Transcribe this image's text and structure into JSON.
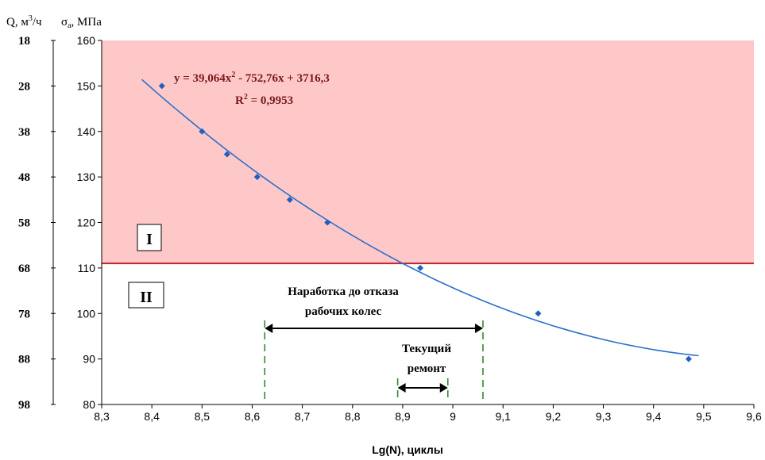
{
  "chart_data": {
    "type": "scatter",
    "xlabel": "Lg(N), циклы",
    "ylabel_sigma": "σa, МПа",
    "ylabel_q": "Q, м³/ч",
    "xlim": [
      8.3,
      9.6
    ],
    "ylim": [
      80,
      160
    ],
    "x_ticks": [
      "8,3",
      "8,4",
      "8,5",
      "8,6",
      "8,7",
      "8,8",
      "8,9",
      "9",
      "9,1",
      "9,2",
      "9,3",
      "9,4",
      "9,5",
      "9,6"
    ],
    "y_ticks": [
      "80",
      "90",
      "100",
      "110",
      "120",
      "130",
      "140",
      "150",
      "160"
    ],
    "q_ticks": [
      "98",
      "88",
      "78",
      "68",
      "58",
      "48",
      "38",
      "28",
      "18"
    ],
    "points": [
      {
        "x": 8.42,
        "y": 150
      },
      {
        "x": 8.5,
        "y": 140
      },
      {
        "x": 8.55,
        "y": 135
      },
      {
        "x": 8.61,
        "y": 130
      },
      {
        "x": 8.675,
        "y": 125
      },
      {
        "x": 8.75,
        "y": 120
      },
      {
        "x": 8.935,
        "y": 110
      },
      {
        "x": 9.17,
        "y": 100
      },
      {
        "x": 9.47,
        "y": 90
      }
    ],
    "trendline": {
      "a": 39.064,
      "b": -752.76,
      "c": 3716.3,
      "x_range": [
        8.38,
        9.49
      ]
    },
    "equation_parts": {
      "lhs": "y = 39,064x",
      "exp": "2",
      "rhs": " - 752,76x + 3716,3"
    },
    "r2_parts": {
      "lhs": "R",
      "exp": "2",
      "rhs": " = 0,9953"
    },
    "threshold": 111,
    "zone_top_label": "I",
    "zone_bottom_label": "II",
    "annotation_failure": [
      "Наработка до отказа",
      "рабочих колес"
    ],
    "annotation_repair": [
      "Текущий",
      "ремонт"
    ],
    "failure_range": [
      8.625,
      9.06
    ],
    "repair_range": [
      8.89,
      8.99
    ],
    "colors": {
      "zone_fill": "#ffc8c8",
      "threshold_line": "#c0262c",
      "marker": "#1f5fc0",
      "trend": "#2a70c8",
      "guide_dash": "#2e8b2e",
      "equation_text": "#7a1a1a"
    }
  }
}
